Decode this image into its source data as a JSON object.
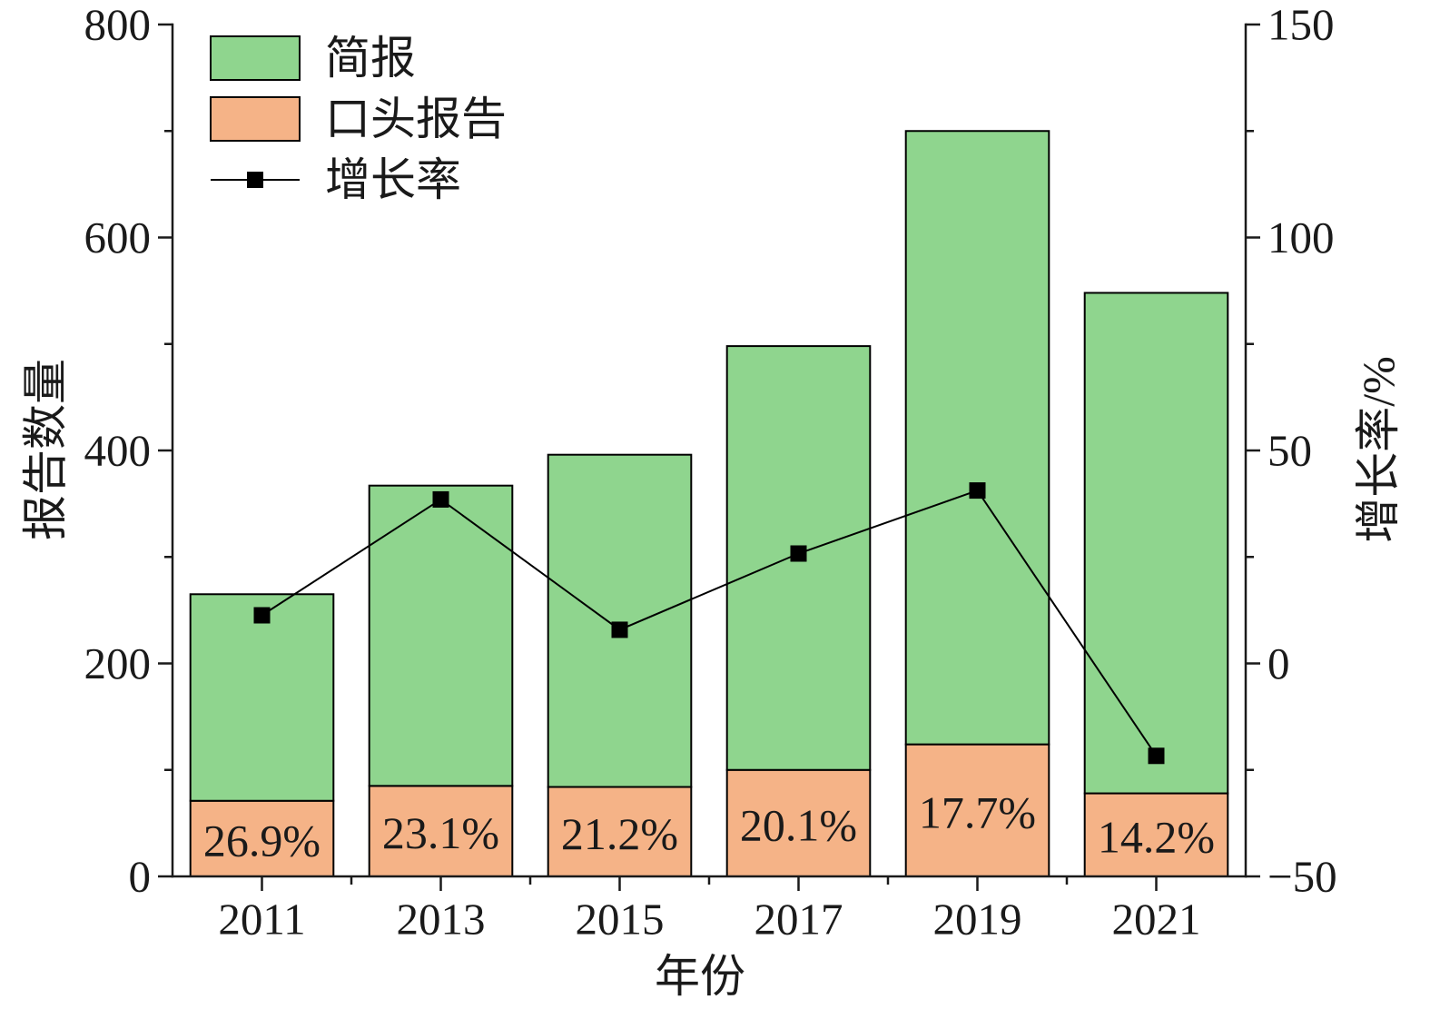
{
  "chart_data": {
    "type": "bar",
    "stacked": true,
    "categories": [
      "2011",
      "2013",
      "2015",
      "2017",
      "2019",
      "2021"
    ],
    "series": [
      {
        "name": "简报",
        "type": "bar",
        "values": [
          194,
          282,
          312,
          398,
          576,
          470
        ],
        "color": "#8FD58E"
      },
      {
        "name": "口头报告",
        "type": "bar",
        "values": [
          71,
          85,
          84,
          100,
          124,
          78
        ],
        "color": "#F5B387"
      },
      {
        "name": "增长率",
        "type": "line",
        "axis": "right",
        "marker": "square",
        "values": [
          11.3,
          38.5,
          7.9,
          25.8,
          40.6,
          -21.7
        ],
        "color": "#000000"
      }
    ],
    "bar_labels": [
      "26.9%",
      "23.1%",
      "21.2%",
      "20.1%",
      "17.7%",
      "14.2%"
    ],
    "xlabel": "年份",
    "ylabel": "报告数量",
    "y2label": "增长率/%",
    "ylim": [
      0,
      800
    ],
    "yticks": [
      0,
      200,
      400,
      600,
      800
    ],
    "y2lim": [
      -50,
      150
    ],
    "y2ticks": [
      -50,
      0,
      50,
      100,
      150
    ],
    "y2tick_labels": [
      "−50",
      "0",
      "50",
      "100",
      "150"
    ],
    "legend": "top-left",
    "grid": false
  }
}
